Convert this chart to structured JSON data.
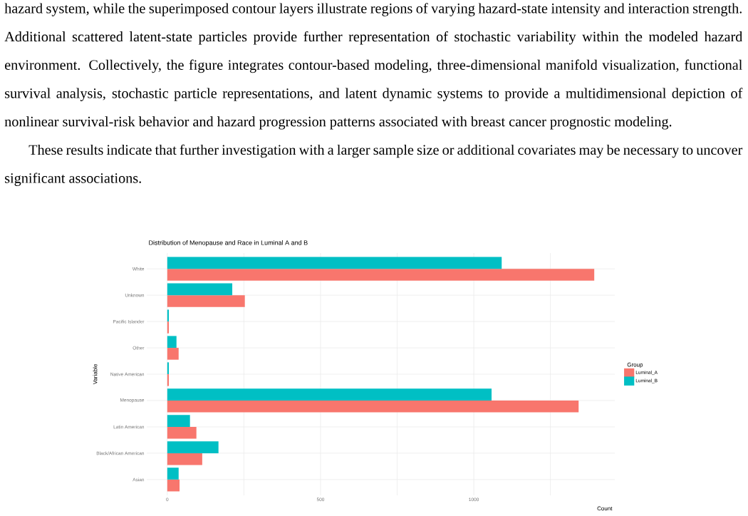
{
  "chart_data": {
    "type": "bar",
    "orientation": "horizontal",
    "title": "Distribution of Menopause and Race in Luminal A and B",
    "xlabel": "Count",
    "ylabel": "Variable",
    "legend_title": "Group",
    "legend": "right",
    "grid": true,
    "annotations": [
      "hazard system, while the superimposed contour layers illustrate regions of varying hazard-state intensity and interaction strength.  Additional scattered latent-state particles provide further representation of stochastic variability within the modeled hazard environment.  Collectively, the figure integrates contour-based modeling, three-dimensional manifold visualization, functional survival analysis, stochastic particle representations, and latent dynamic systems to provide a multidimensional depiction of nonlinear survival-risk behavior and hazard progression patterns associated with breast cancer prognostic modeling.",
      "These results indicate that further investigation with a larger sample size or additional covariates may be necessary to uncover significant associations."
    ],
    "categories": [
      "White",
      "Unknown",
      "Pacific Islander",
      "Other",
      "Native American",
      "Menopause",
      "Latin American",
      "Black/African American",
      "Asian"
    ],
    "xlim": [
      -67,
      1460
    ],
    "xticks": [
      0,
      {
        "value": 250,
        "label": null
      },
      500,
      {
        "value": 750,
        "label": null
      },
      1000,
      {
        "value": 1250,
        "label": null
      }
    ],
    "series": [
      {
        "name": "Luminal_A",
        "color": "#f8766d",
        "values": [
          1393,
          253,
          5,
          37,
          5,
          1342,
          95,
          114,
          40
        ]
      },
      {
        "name": "Luminal_B",
        "color": "#00bfc4",
        "values": [
          1091,
          212,
          5,
          30,
          5,
          1058,
          74,
          167,
          37
        ]
      }
    ]
  }
}
